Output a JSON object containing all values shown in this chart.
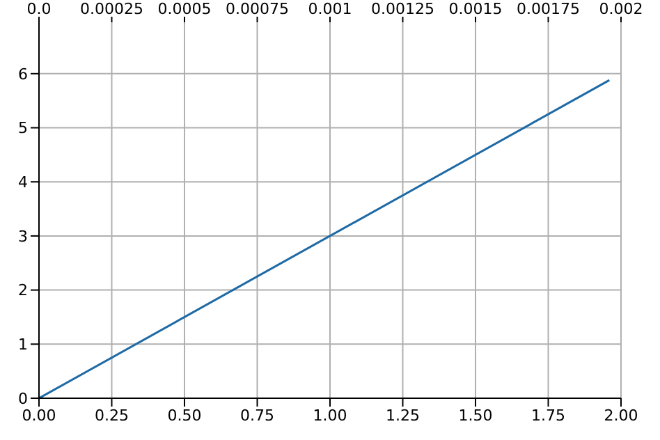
{
  "chart_data": {
    "type": "line",
    "x": [
      0,
      1.96
    ],
    "series": [
      {
        "color": "#1f6aa5",
        "values": [
          0,
          5.88
        ]
      }
    ],
    "xlim": [
      0,
      2
    ],
    "xticks": [
      {
        "value": 0,
        "label": "0.00"
      },
      0.25,
      {
        "value": 0.5,
        "label": "0.50"
      },
      0.75,
      {
        "value": 1,
        "label": "1.00"
      },
      1.25,
      {
        "value": 1.5,
        "label": "1.50"
      },
      1.75,
      {
        "value": 2,
        "label": "2.00"
      }
    ],
    "x2lim": [
      0,
      0.002
    ],
    "x2ticks": [
      {
        "value": 0,
        "label": "0.0"
      },
      0.00025,
      0.0005,
      0.00075,
      0.001,
      0.00125,
      0.0015,
      0.00175,
      0.002
    ],
    "ylim": [
      0,
      6.95
    ],
    "yticks": [
      0,
      1,
      2,
      3,
      4,
      5,
      6
    ],
    "grid": true
  }
}
